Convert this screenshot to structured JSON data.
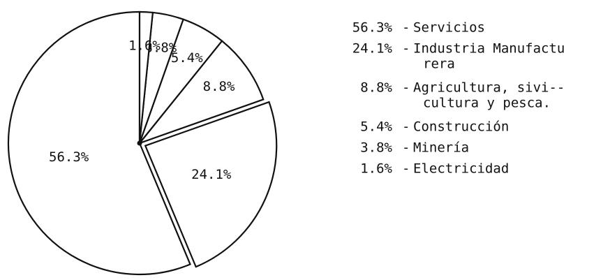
{
  "chart_data": {
    "type": "pie",
    "categories": [
      [
        "Servicios"
      ],
      [
        "Industria Manufactu",
        "rera"
      ],
      [
        "Agricultura, sivi--",
        "cultura y pesca."
      ],
      [
        "Construcción"
      ],
      [
        "Minería"
      ],
      [
        "Electricidad"
      ]
    ],
    "values": [
      56.3,
      24.1,
      8.8,
      5.4,
      3.8,
      1.6
    ],
    "value_labels": [
      "56.3%",
      "24.1%",
      "8.8%",
      "5.4%",
      "3.8%",
      "1.6%"
    ],
    "exploded": [
      false,
      true,
      false,
      false,
      false,
      false
    ],
    "color": "#ffffff"
  }
}
